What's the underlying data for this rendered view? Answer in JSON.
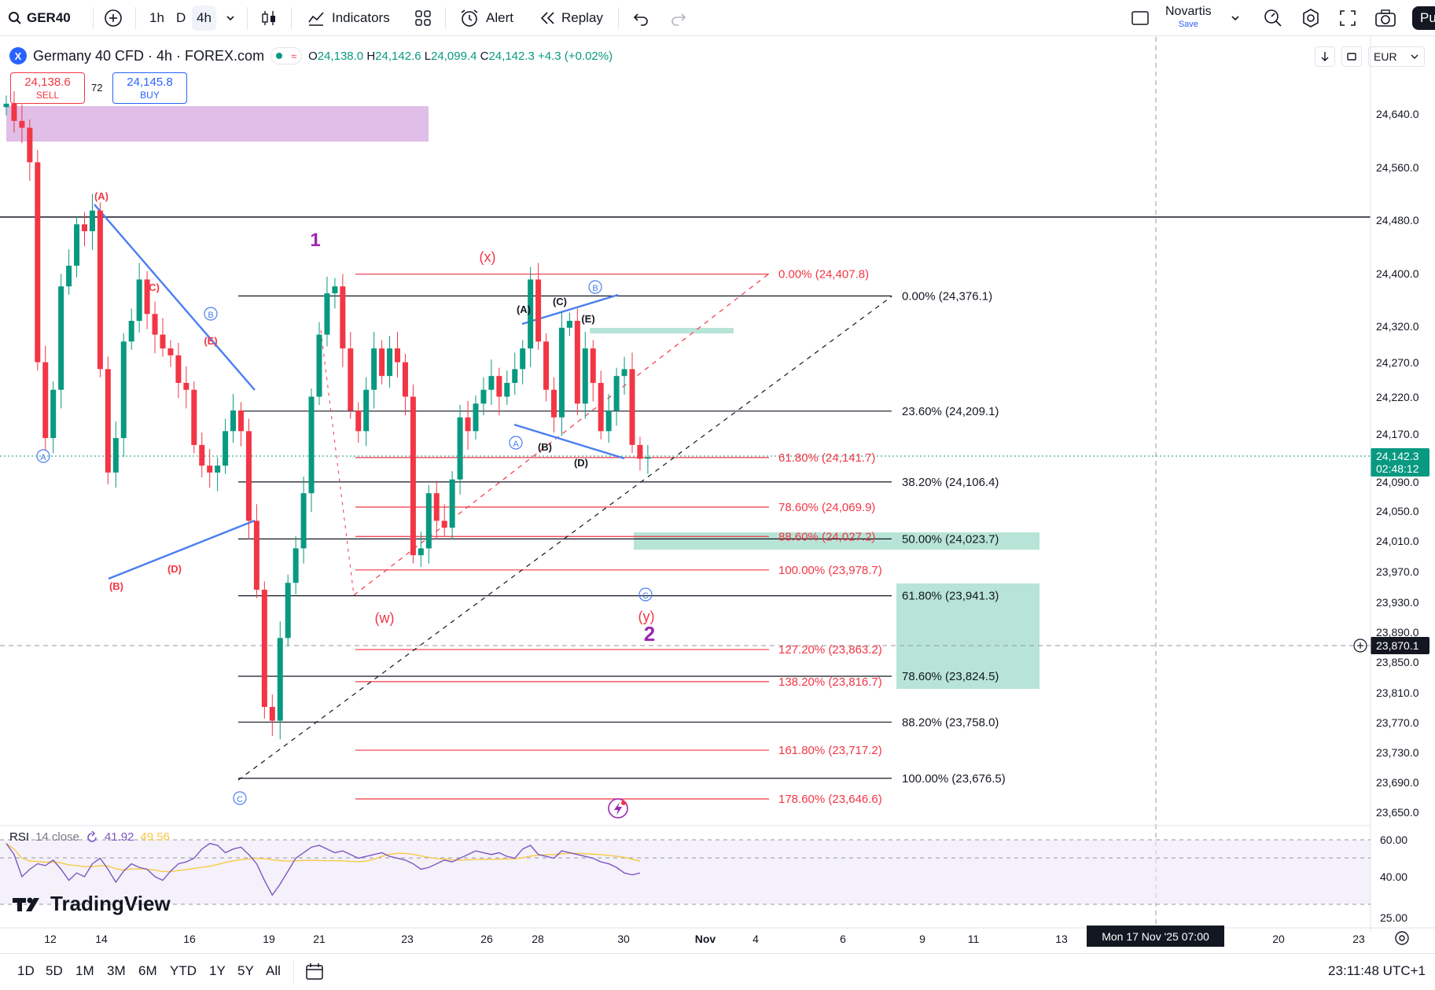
{
  "toolbar": {
    "symbol": "GER40",
    "timeframes": [
      "1h",
      "D",
      "4h"
    ],
    "active_timeframe": "4h",
    "indicators_label": "Indicators",
    "alert_label": "Alert",
    "replay_label": "Replay",
    "layout_name": "Novartis",
    "layout_save": "Save",
    "publish_label": "Pu"
  },
  "legend": {
    "title": "Germany 40 CFD · 4h · FOREX.com",
    "o_label": "O",
    "o": "24,138.0",
    "h_label": "H",
    "h": "24,142.6",
    "l_label": "L",
    "l": "24,099.4",
    "c_label": "C",
    "c": "24,142.3",
    "change": "+4.3 (+0.02%)"
  },
  "trade": {
    "sell_price": "24,138.6",
    "sell_label": "SELL",
    "spread": "72",
    "buy_price": "24,145.8",
    "buy_label": "BUY"
  },
  "currency": "EUR",
  "price_axis": {
    "labels": [
      "24,640.0",
      "24,560.0",
      "24,480.0",
      "24,400.0",
      "24,320.0",
      "24,270.0",
      "24,220.0",
      "24,170.0",
      "24,090.0",
      "24,050.0",
      "24,010.0",
      "23,970.0",
      "23,930.0",
      "23,890.0",
      "23,850.0",
      "23,810.0",
      "23,770.0",
      "23,730.0",
      "23,690.0",
      "23,650.0"
    ],
    "last_price": "24,142.3",
    "countdown": "02:48:12",
    "crosshair_price": "23,870.1"
  },
  "time_axis": {
    "labels": [
      "12",
      "14",
      "16",
      "19",
      "21",
      "23",
      "26",
      "28",
      "30",
      "Nov",
      "4",
      "6",
      "9",
      "11",
      "13",
      "20",
      "23"
    ],
    "crosshair_time": "Mon 17 Nov '25  07:00"
  },
  "fib_black": [
    "0.00% (24,376.1)",
    "23.60% (24,209.1)",
    "38.20% (24,106.4)",
    "50.00% (24,023.7)",
    "61.80% (23,941.3)",
    "78.60% (23,824.5)",
    "88.20% (23,758.0)",
    "100.00% (23,676.5)"
  ],
  "fib_red": [
    "0.00% (24,407.8)",
    "61.80% (24,141.7)",
    "78.60% (24,069.9)",
    "88.60% (24,027.2)",
    "100.00% (23,978.7)",
    "127.20% (23,863.2)",
    "138.20% (23,816.7)",
    "161.80% (23,717.2)",
    "178.60% (23,646.6)"
  ],
  "waves": {
    "w1": "1",
    "w2": "2",
    "x": "(x)",
    "w": "(w)",
    "y": "(y)",
    "A": "(A)",
    "B": "(B)",
    "C": "(C)",
    "D": "(D)",
    "E": "(E)",
    "circ_a": "A",
    "circ_b": "B",
    "circ_c": "C"
  },
  "rsi": {
    "label": "RSI",
    "params": "14 close",
    "value1": "41.92",
    "value2": "49.56",
    "axis": [
      "60.00",
      "40.00",
      "25.00"
    ]
  },
  "brand": "TradingView",
  "bottom": {
    "ranges": [
      "1D",
      "5D",
      "1M",
      "3M",
      "6M",
      "YTD",
      "1Y",
      "5Y",
      "All"
    ],
    "clock": "23:11:48 UTC+1"
  },
  "colors": {
    "up": "#089981",
    "down": "#f23645",
    "blue_line": "#4a7ef0",
    "purple": "#9c27b0",
    "zone_green": "#b7e4d6",
    "zone_purple": "#e1bee7"
  }
}
